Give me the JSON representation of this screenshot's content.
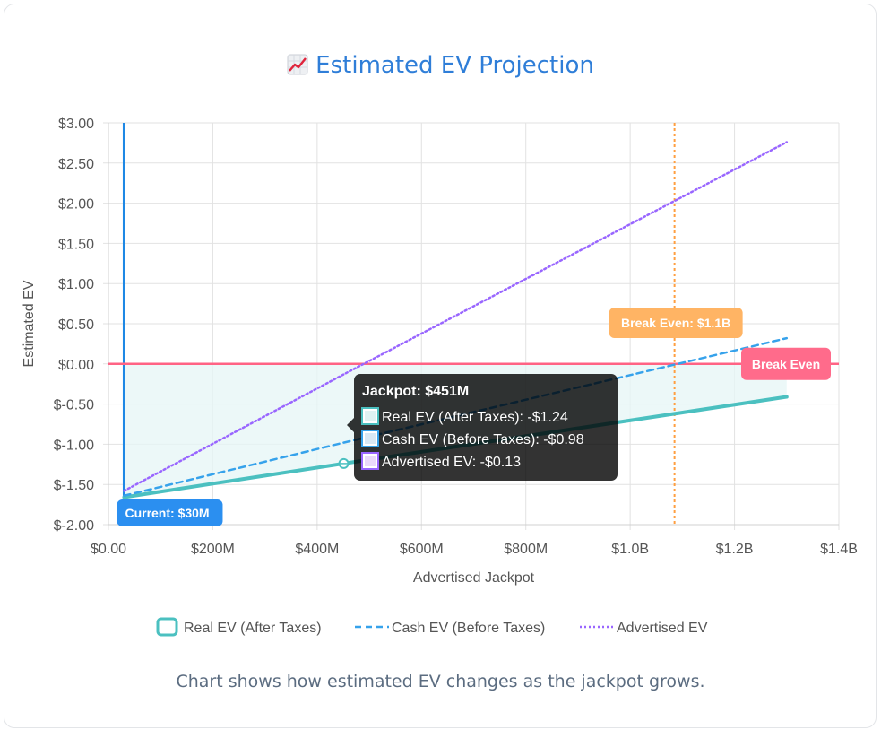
{
  "title": "Estimated EV Projection",
  "caption": "Chart shows how estimated EV changes as the jackpot grows.",
  "colors": {
    "real": "#4bc0c0",
    "cash": "#36a2eb",
    "advertised": "#9966ff",
    "zero_line": "#ff6384",
    "current_line": "#1e88e5",
    "breakeven_line": "#ff9f40",
    "fill": "#e6f5f5"
  },
  "chart_data": {
    "type": "line",
    "xlabel": "Advertised Jackpot",
    "ylabel": "Estimated EV",
    "xlim": [
      0,
      1400000000
    ],
    "ylim": [
      -2.0,
      3.0
    ],
    "x_ticks": [
      "$0.00",
      "$200M",
      "$400M",
      "$600M",
      "$800M",
      "$1.0B",
      "$1.2B",
      "$1.4B"
    ],
    "y_ticks": [
      "$3.00",
      "$2.50",
      "$2.00",
      "$1.50",
      "$1.00",
      "$0.50",
      "$0.00",
      "$-0.50",
      "$-1.00",
      "$-1.50",
      "$-2.00"
    ],
    "grid": true,
    "legend_position": "bottom",
    "series": [
      {
        "name": "Real EV (After Taxes)",
        "x": [
          30000000,
          451000000,
          1300000000
        ],
        "y": [
          -1.66,
          -1.24,
          -0.41
        ]
      },
      {
        "name": "Cash EV (Before Taxes)",
        "x": [
          30000000,
          451000000,
          1300000000
        ],
        "y": [
          -1.64,
          -0.98,
          0.32
        ]
      },
      {
        "name": "Advertised EV",
        "x": [
          30000000,
          451000000,
          1300000000
        ],
        "y": [
          -1.58,
          -0.13,
          2.76
        ]
      }
    ],
    "annotations": {
      "current": {
        "label": "Current: $30M",
        "x": 30000000
      },
      "break_even_x": {
        "label": "Break Even: $1.1B",
        "x": 1085000000
      },
      "break_even_y": {
        "label": "Break Even",
        "y": 0
      }
    },
    "tooltip": {
      "title": "Jackpot: $451M",
      "x": 451000000,
      "items": [
        "Real EV (After Taxes): -$1.24",
        "Cash EV (Before Taxes): -$0.98",
        "Advertised EV: -$0.13"
      ]
    }
  }
}
